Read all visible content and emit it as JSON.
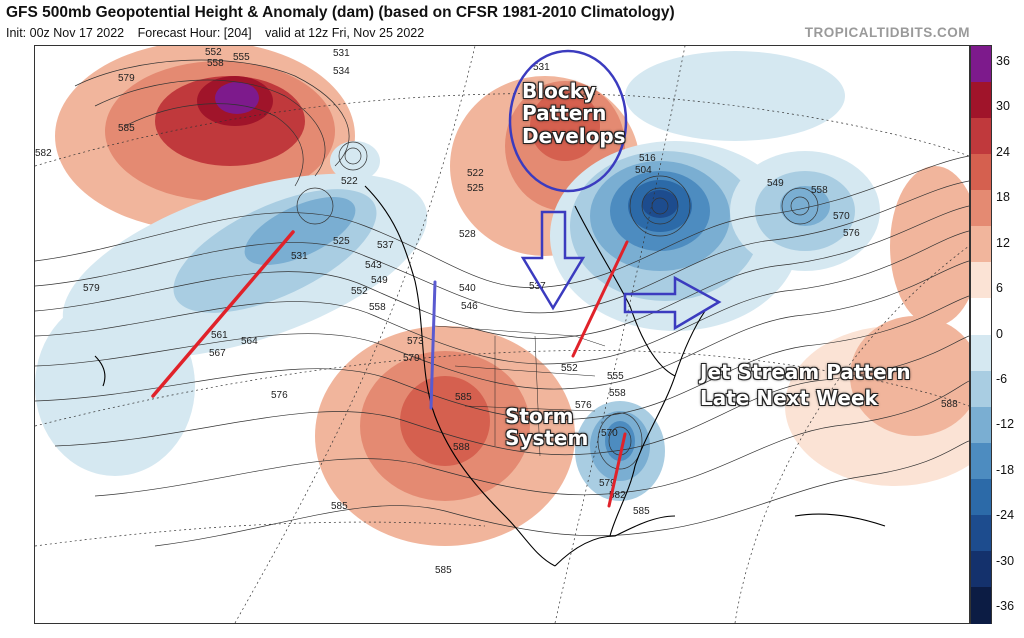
{
  "header": {
    "title": "GFS 500mb Geopotential Height & Anomaly (dam) (based on CFSR 1981-2010 Climatology)",
    "init": "Init: 00z Nov 17 2022",
    "forecast_hour": "Forecast Hour: [204]",
    "valid": "valid at 12z Fri, Nov 25 2022",
    "brand": "TROPICALTIDBITS.COM"
  },
  "annotations": {
    "blocky_line1": "Blocky",
    "blocky_line2": "Pattern",
    "blocky_line3": "Develops",
    "storm_line1": "Storm",
    "storm_line2": "System",
    "jet_line1": "Jet Stream Pattern",
    "jet_line2": "Late Next Week"
  },
  "colorbar": {
    "labels": [
      "36",
      "30",
      "24",
      "18",
      "12",
      "6",
      "0",
      "-6",
      "-12",
      "-18",
      "-24",
      "-30",
      "-36"
    ],
    "colors": [
      "#7d1a8c",
      "#a0142a",
      "#c0393c",
      "#d5604f",
      "#e48a72",
      "#f1b59c",
      "#fbe3d5",
      "#ffffff",
      "#d5e8f1",
      "#a9cde2",
      "#7aaed2",
      "#4d8cc0",
      "#2c6aa8",
      "#1d4c8e",
      "#14316c",
      "#0c1c44"
    ]
  },
  "contour_labels": [
    "552",
    "555",
    "558",
    "531",
    "534",
    "579",
    "585",
    "582",
    "579",
    "522",
    "525",
    "531",
    "537",
    "543",
    "549",
    "552",
    "558",
    "561",
    "564",
    "567",
    "576",
    "573",
    "579",
    "585",
    "588",
    "540",
    "546",
    "522",
    "525",
    "528",
    "516",
    "504",
    "549",
    "558",
    "570",
    "576",
    "537",
    "552",
    "555",
    "558",
    "570",
    "576",
    "579",
    "582",
    "585",
    "585",
    "585",
    "588",
    "531"
  ]
}
